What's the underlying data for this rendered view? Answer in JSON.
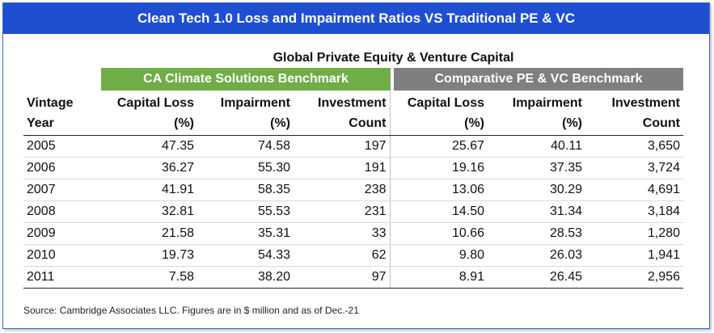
{
  "banner_title": "Clean Tech 1.0 Loss and Impairment Ratios VS Traditional PE & VC",
  "chart_data": {
    "type": "table",
    "title": "Global Private Equity & Venture Capital",
    "groups": [
      {
        "name": "CA Climate Solutions Benchmark",
        "color": "#70ad47"
      },
      {
        "name": "Comparative PE & VC Benchmark",
        "color": "#7f7f7f"
      }
    ],
    "columns": [
      [
        "Vintage",
        "Year"
      ],
      [
        "Capital Loss",
        "(%)"
      ],
      [
        "Impairment",
        "(%)"
      ],
      [
        "Investment",
        "Count"
      ],
      [
        "Capital Loss",
        "(%)"
      ],
      [
        "Impairment",
        "(%)"
      ],
      [
        "Investment",
        "Count"
      ]
    ],
    "rows": [
      [
        "2005",
        "47.35",
        "74.58",
        "197",
        "25.67",
        "40.11",
        "3,650"
      ],
      [
        "2006",
        "36.27",
        "55.30",
        "191",
        "19.16",
        "37.35",
        "3,724"
      ],
      [
        "2007",
        "41.91",
        "58.35",
        "238",
        "13.06",
        "30.29",
        "4,691"
      ],
      [
        "2008",
        "32.81",
        "55.53",
        "231",
        "14.50",
        "31.34",
        "3,184"
      ],
      [
        "2009",
        "21.58",
        "35.31",
        "33",
        "10.66",
        "28.53",
        "1,280"
      ],
      [
        "2010",
        "19.73",
        "54.33",
        "62",
        "9.80",
        "26.03",
        "1,941"
      ],
      [
        "2011",
        "7.58",
        "38.20",
        "97",
        "8.91",
        "26.45",
        "2,956"
      ]
    ]
  },
  "source_note": "Source: Cambridge Associates LLC. Figures are in $ million and as of Dec.-21"
}
